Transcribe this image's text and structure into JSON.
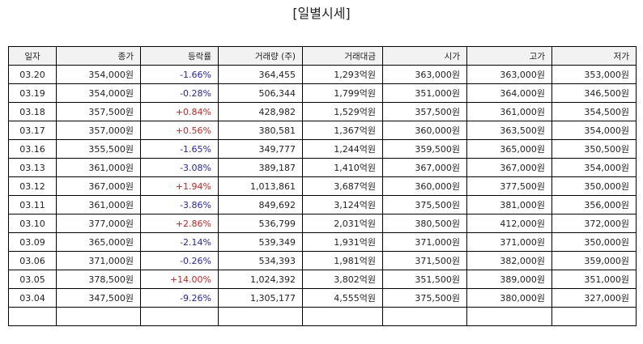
{
  "title": "[일별시세]",
  "colors": {
    "up": "#e02020",
    "down": "#2222c8",
    "header_bg": "#f2f2f2",
    "border": "#000000"
  },
  "columns": [
    "일자",
    "종가",
    "등락률",
    "거래량 (주)",
    "거래대금",
    "시가",
    "고가",
    "저가"
  ],
  "rows": [
    {
      "date": "03.20",
      "close": "354,000원",
      "change": "-1.66%",
      "dir": "down",
      "volume": "364,455",
      "amount": "1,293억원",
      "open": "363,000원",
      "high": "363,000원",
      "low": "353,000원"
    },
    {
      "date": "03.19",
      "close": "354,000원",
      "change": "-0.28%",
      "dir": "down",
      "volume": "506,344",
      "amount": "1,799억원",
      "open": "351,000원",
      "high": "364,000원",
      "low": "346,500원"
    },
    {
      "date": "03.18",
      "close": "357,500원",
      "change": "+0.84%",
      "dir": "up",
      "volume": "428,982",
      "amount": "1,529억원",
      "open": "357,500원",
      "high": "361,000원",
      "low": "354,500원"
    },
    {
      "date": "03.17",
      "close": "357,000원",
      "change": "+0.56%",
      "dir": "up",
      "volume": "380,581",
      "amount": "1,367억원",
      "open": "360,000원",
      "high": "363,500원",
      "low": "354,000원"
    },
    {
      "date": "03.16",
      "close": "355,500원",
      "change": "-1.65%",
      "dir": "down",
      "volume": "349,777",
      "amount": "1,244억원",
      "open": "359,500원",
      "high": "365,000원",
      "low": "350,500원"
    },
    {
      "date": "03.13",
      "close": "361,000원",
      "change": "-3.08%",
      "dir": "down",
      "volume": "389,187",
      "amount": "1,410억원",
      "open": "367,000원",
      "high": "367,000원",
      "low": "354,000원"
    },
    {
      "date": "03.12",
      "close": "367,000원",
      "change": "+1.94%",
      "dir": "up",
      "volume": "1,013,861",
      "amount": "3,687억원",
      "open": "360,000원",
      "high": "377,500원",
      "low": "350,000원"
    },
    {
      "date": "03.11",
      "close": "361,000원",
      "change": "-3.86%",
      "dir": "down",
      "volume": "849,692",
      "amount": "3,124억원",
      "open": "375,500원",
      "high": "381,000원",
      "low": "356,000원"
    },
    {
      "date": "03.10",
      "close": "377,000원",
      "change": "+2.86%",
      "dir": "up",
      "volume": "536,799",
      "amount": "2,031억원",
      "open": "380,500원",
      "high": "412,000원",
      "low": "372,000원"
    },
    {
      "date": "03.09",
      "close": "365,000원",
      "change": "-2.14%",
      "dir": "down",
      "volume": "539,349",
      "amount": "1,931억원",
      "open": "371,000원",
      "high": "371,000원",
      "low": "350,000원"
    },
    {
      "date": "03.06",
      "close": "371,000원",
      "change": "-0.26%",
      "dir": "down",
      "volume": "534,393",
      "amount": "1,981억원",
      "open": "371,500원",
      "high": "382,000원",
      "low": "359,000원"
    },
    {
      "date": "03.05",
      "close": "378,500원",
      "change": "+14.00%",
      "dir": "up",
      "volume": "1,024,392",
      "amount": "3,802억원",
      "open": "351,500원",
      "high": "389,000원",
      "low": "351,000원"
    },
    {
      "date": "03.04",
      "close": "347,500원",
      "change": "-9.26%",
      "dir": "down",
      "volume": "1,305,177",
      "amount": "4,555억원",
      "open": "375,500원",
      "high": "380,000원",
      "low": "327,000원"
    }
  ]
}
